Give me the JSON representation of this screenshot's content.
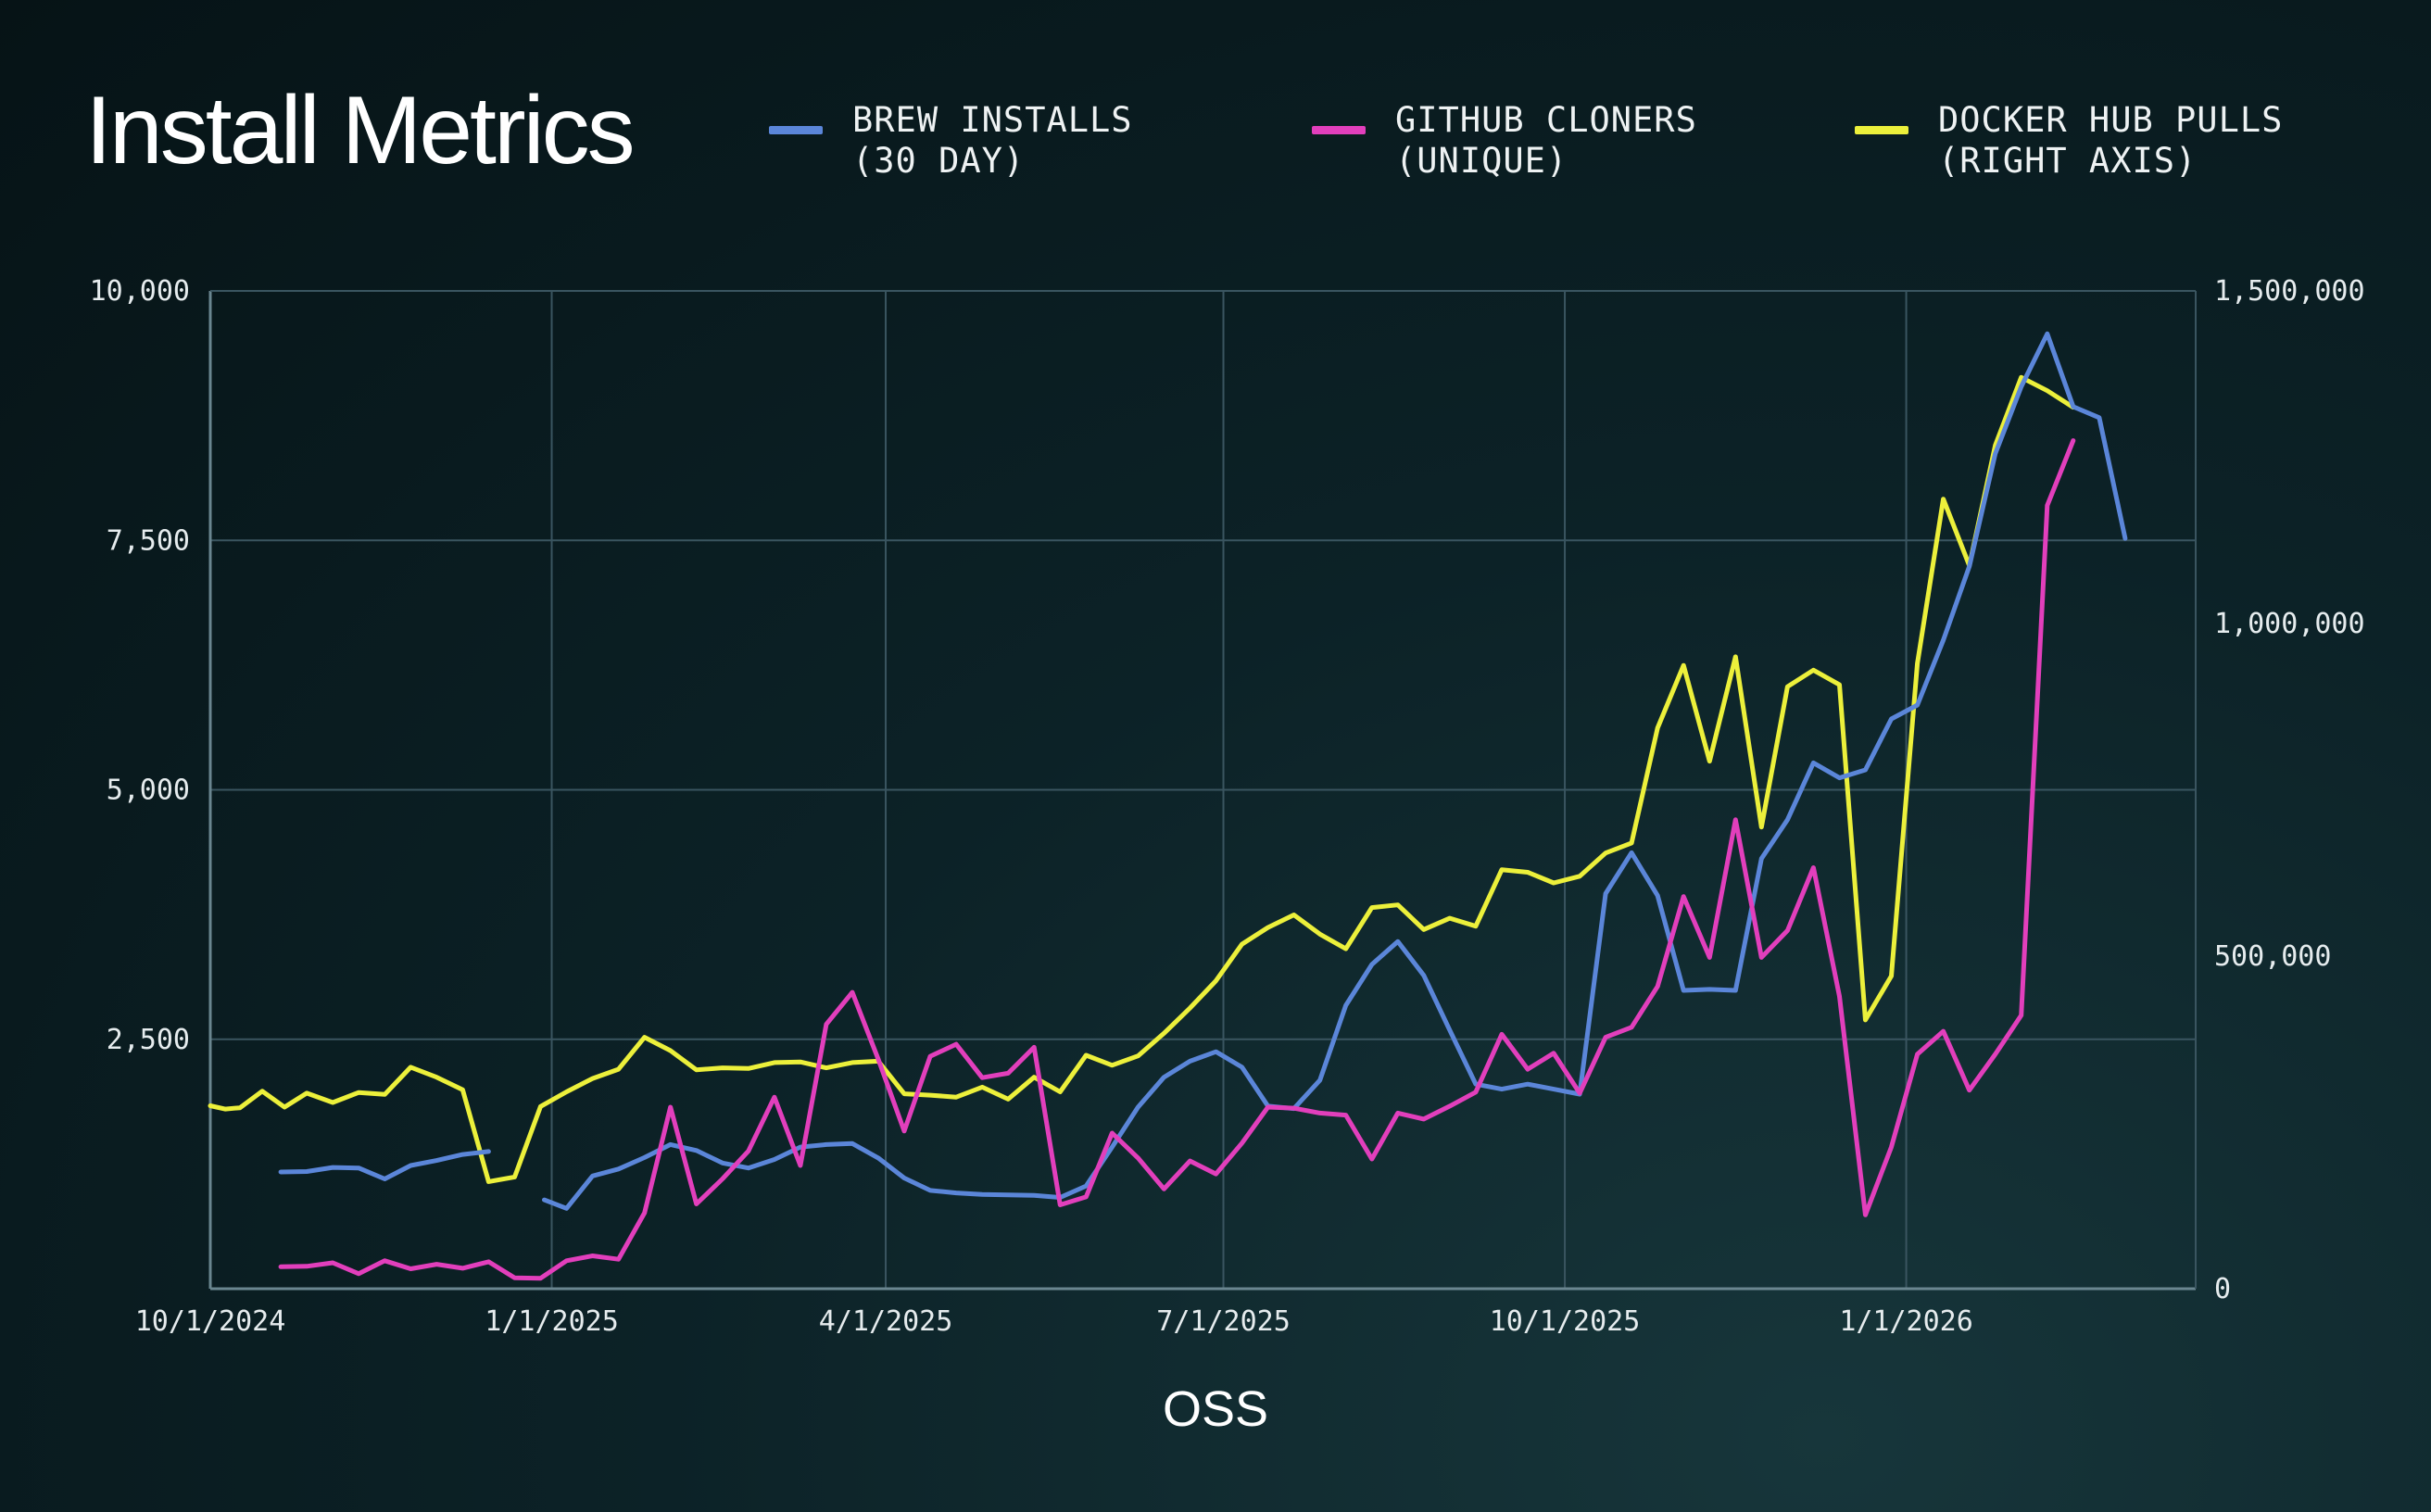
{
  "chart_data": {
    "type": "line",
    "title": "Install Metrics",
    "xlabel": "OSS",
    "x_range": [
      "2024-10-01",
      "2026-03-20"
    ],
    "x_ticks": [
      "10/1/2024",
      "1/1/2025",
      "4/1/2025",
      "7/1/2025",
      "10/1/2025",
      "1/1/2026"
    ],
    "y_left": {
      "ylim": [
        0,
        10000
      ],
      "ticks": [
        "2,500",
        "5,000",
        "7,500",
        "10,000"
      ]
    },
    "y_right": {
      "ylim": [
        0,
        1500000
      ],
      "ticks": [
        "0",
        "500,000",
        "1,000,000",
        "1,500,000"
      ]
    },
    "grid": true,
    "legend_position": "top",
    "series": [
      {
        "name_line1": "BREW INSTALLS",
        "name_line2": "(30 DAY)",
        "axis": "left",
        "color": "#5b86d9",
        "points": [
          [
            "2024-10-20",
            1170
          ],
          [
            "2024-10-27",
            1175
          ],
          [
            "2024-11-03",
            1215
          ],
          [
            "2024-11-10",
            1210
          ],
          [
            "2024-11-17",
            1100
          ],
          [
            "2024-11-24",
            1235
          ],
          [
            "2024-12-01",
            1285
          ],
          [
            "2024-12-08",
            1345
          ],
          [
            "2024-12-15",
            1375
          ],
          null,
          [
            "2024-12-30",
            890
          ],
          [
            "2025-01-05",
            805
          ],
          [
            "2025-01-12",
            1130
          ],
          [
            "2025-01-19",
            1200
          ],
          [
            "2025-01-26",
            1315
          ],
          [
            "2025-02-02",
            1445
          ],
          [
            "2025-02-09",
            1385
          ],
          [
            "2025-02-16",
            1260
          ],
          [
            "2025-02-23",
            1210
          ],
          [
            "2025-03-02",
            1295
          ],
          [
            "2025-03-09",
            1420
          ],
          [
            "2025-03-16",
            1445
          ],
          [
            "2025-03-23",
            1455
          ],
          [
            "2025-03-30",
            1310
          ],
          [
            "2025-04-06",
            1110
          ],
          [
            "2025-04-13",
            985
          ],
          [
            "2025-04-20",
            960
          ],
          [
            "2025-04-27",
            945
          ],
          [
            "2025-05-04",
            940
          ],
          [
            "2025-05-11",
            935
          ],
          [
            "2025-05-18",
            915
          ],
          [
            "2025-05-25",
            1030
          ],
          [
            "2025-06-01",
            1420
          ],
          [
            "2025-06-08",
            1820
          ],
          [
            "2025-06-15",
            2120
          ],
          [
            "2025-06-22",
            2280
          ],
          [
            "2025-06-29",
            2375
          ],
          [
            "2025-07-06",
            2220
          ],
          [
            "2025-07-13",
            1830
          ],
          [
            "2025-07-20",
            1805
          ],
          [
            "2025-07-27",
            2090
          ],
          [
            "2025-08-03",
            2840
          ],
          [
            "2025-08-10",
            3250
          ],
          [
            "2025-08-17",
            3480
          ],
          [
            "2025-08-24",
            3140
          ],
          [
            "2025-08-31",
            2590
          ],
          [
            "2025-09-07",
            2050
          ],
          [
            "2025-09-14",
            2000
          ],
          [
            "2025-09-21",
            2050
          ],
          [
            "2025-09-28",
            2000
          ],
          [
            "2025-10-05",
            1950
          ],
          [
            "2025-10-12",
            3960
          ],
          [
            "2025-10-19",
            4370
          ],
          [
            "2025-10-26",
            3940
          ],
          [
            "2025-11-02",
            2990
          ],
          [
            "2025-11-09",
            3000
          ],
          [
            "2025-11-16",
            2990
          ],
          [
            "2025-11-23",
            4310
          ],
          [
            "2025-11-30",
            4700
          ],
          [
            "2025-12-07",
            5270
          ],
          [
            "2025-12-14",
            5120
          ],
          [
            "2025-12-21",
            5200
          ],
          [
            "2025-12-28",
            5710
          ],
          [
            "2026-01-04",
            5850
          ],
          [
            "2026-01-11",
            6500
          ],
          [
            "2026-01-18",
            7240
          ],
          [
            "2026-01-25",
            8370
          ],
          [
            "2026-02-01",
            9040
          ],
          [
            "2026-02-08",
            9570
          ],
          [
            "2026-02-15",
            8840
          ],
          [
            "2026-02-22",
            8730
          ],
          [
            "2026-03-01",
            7520
          ]
        ]
      },
      {
        "name_line1": "GITHUB CLONERS",
        "name_line2": "(UNIQUE)",
        "axis": "left",
        "color": "#e23fbc",
        "points": [
          [
            "2024-10-20",
            220
          ],
          [
            "2024-10-27",
            225
          ],
          [
            "2024-11-03",
            260
          ],
          [
            "2024-11-10",
            150
          ],
          [
            "2024-11-17",
            280
          ],
          [
            "2024-11-24",
            200
          ],
          [
            "2024-12-01",
            245
          ],
          [
            "2024-12-08",
            205
          ],
          [
            "2024-12-15",
            270
          ],
          [
            "2024-12-22",
            110
          ],
          [
            "2024-12-29",
            105
          ],
          [
            "2025-01-05",
            280
          ],
          [
            "2025-01-12",
            330
          ],
          [
            "2025-01-19",
            295
          ],
          [
            "2025-01-26",
            760
          ],
          [
            "2025-02-02",
            1820
          ],
          [
            "2025-02-09",
            850
          ],
          [
            "2025-02-16",
            1100
          ],
          [
            "2025-02-23",
            1380
          ],
          [
            "2025-03-02",
            1920
          ],
          [
            "2025-03-09",
            1235
          ],
          [
            "2025-03-16",
            2650
          ],
          [
            "2025-03-23",
            2970
          ],
          [
            "2025-03-30",
            2300
          ],
          [
            "2025-04-06",
            1580
          ],
          [
            "2025-04-13",
            2330
          ],
          [
            "2025-04-20",
            2450
          ],
          [
            "2025-04-27",
            2115
          ],
          [
            "2025-05-04",
            2160
          ],
          [
            "2025-05-11",
            2420
          ],
          [
            "2025-05-18",
            840
          ],
          [
            "2025-05-25",
            920
          ],
          [
            "2025-06-01",
            1560
          ],
          [
            "2025-06-08",
            1310
          ],
          [
            "2025-06-15",
            1000
          ],
          [
            "2025-06-22",
            1280
          ],
          [
            "2025-06-29",
            1150
          ],
          [
            "2025-07-06",
            1460
          ],
          [
            "2025-07-13",
            1820
          ],
          [
            "2025-07-20",
            1810
          ],
          [
            "2025-07-27",
            1760
          ],
          [
            "2025-08-03",
            1740
          ],
          [
            "2025-08-10",
            1300
          ],
          [
            "2025-08-17",
            1760
          ],
          [
            "2025-08-24",
            1700
          ],
          [
            "2025-08-31",
            1830
          ],
          [
            "2025-09-07",
            1970
          ],
          [
            "2025-09-14",
            2550
          ],
          [
            "2025-09-21",
            2200
          ],
          [
            "2025-09-28",
            2360
          ],
          [
            "2025-10-05",
            1960
          ],
          [
            "2025-10-12",
            2520
          ],
          [
            "2025-10-19",
            2620
          ],
          [
            "2025-10-26",
            3030
          ],
          [
            "2025-11-02",
            3930
          ],
          [
            "2025-11-09",
            3320
          ],
          [
            "2025-11-16",
            4700
          ],
          [
            "2025-11-23",
            3320
          ],
          [
            "2025-11-30",
            3590
          ],
          [
            "2025-12-07",
            4220
          ],
          [
            "2025-12-14",
            2930
          ],
          [
            "2025-12-21",
            740
          ],
          [
            "2025-12-28",
            1420
          ],
          [
            "2026-01-04",
            2350
          ],
          [
            "2026-01-11",
            2580
          ],
          [
            "2026-01-18",
            1990
          ],
          [
            "2026-01-25",
            2350
          ],
          [
            "2026-02-01",
            2740
          ],
          [
            "2026-02-08",
            7850
          ],
          [
            "2026-02-15",
            8500
          ]
        ]
      },
      {
        "name_line1": "DOCKER HUB PULLS",
        "name_line2": "(RIGHT AXIS)",
        "axis": "right",
        "color": "#ecf03b",
        "points": [
          [
            "2024-10-01",
            275000
          ],
          [
            "2024-10-05",
            270000
          ],
          [
            "2024-10-09",
            272000
          ],
          [
            "2024-10-15",
            297000
          ],
          [
            "2024-10-21",
            273000
          ],
          [
            "2024-10-27",
            294000
          ],
          [
            "2024-11-03",
            280000
          ],
          [
            "2024-11-10",
            295000
          ],
          [
            "2024-11-17",
            292000
          ],
          [
            "2024-11-24",
            333000
          ],
          [
            "2024-12-01",
            318000
          ],
          [
            "2024-12-08",
            299000
          ],
          [
            "2024-12-15",
            161000
          ],
          [
            "2024-12-22",
            168000
          ],
          [
            "2024-12-29",
            274000
          ],
          [
            "2025-01-05",
            296000
          ],
          [
            "2025-01-12",
            316000
          ],
          [
            "2025-01-19",
            330000
          ],
          [
            "2025-01-26",
            378000
          ],
          [
            "2025-02-02",
            358000
          ],
          [
            "2025-02-09",
            329000
          ],
          [
            "2025-02-16",
            332000
          ],
          [
            "2025-02-23",
            331000
          ],
          [
            "2025-03-02",
            340000
          ],
          [
            "2025-03-09",
            341000
          ],
          [
            "2025-03-16",
            332000
          ],
          [
            "2025-03-23",
            340000
          ],
          [
            "2025-03-30",
            342000
          ],
          [
            "2025-04-06",
            293000
          ],
          [
            "2025-04-13",
            291000
          ],
          [
            "2025-04-20",
            288000
          ],
          [
            "2025-04-27",
            303000
          ],
          [
            "2025-05-04",
            285000
          ],
          [
            "2025-05-11",
            318000
          ],
          [
            "2025-05-18",
            296000
          ],
          [
            "2025-05-25",
            351000
          ],
          [
            "2025-06-01",
            336000
          ],
          [
            "2025-06-08",
            350000
          ],
          [
            "2025-06-15",
            384000
          ],
          [
            "2025-06-22",
            422000
          ],
          [
            "2025-06-29",
            463000
          ],
          [
            "2025-07-06",
            518000
          ],
          [
            "2025-07-13",
            543000
          ],
          [
            "2025-07-20",
            562000
          ],
          [
            "2025-07-27",
            533000
          ],
          [
            "2025-08-03",
            511000
          ],
          [
            "2025-08-10",
            573000
          ],
          [
            "2025-08-17",
            577000
          ],
          [
            "2025-08-24",
            540000
          ],
          [
            "2025-08-31",
            557000
          ],
          [
            "2025-09-07",
            545000
          ],
          [
            "2025-09-14",
            630000
          ],
          [
            "2025-09-21",
            626000
          ],
          [
            "2025-09-28",
            610000
          ],
          [
            "2025-10-05",
            620000
          ],
          [
            "2025-10-12",
            655000
          ],
          [
            "2025-10-19",
            670000
          ],
          [
            "2025-10-26",
            843000
          ],
          [
            "2025-11-02",
            937000
          ],
          [
            "2025-11-09",
            793000
          ],
          [
            "2025-11-16",
            950000
          ],
          [
            "2025-11-23",
            694000
          ],
          [
            "2025-11-30",
            905000
          ],
          [
            "2025-12-07",
            930000
          ],
          [
            "2025-12-14",
            908000
          ],
          [
            "2025-12-21",
            404000
          ],
          [
            "2025-12-28",
            470000
          ],
          [
            "2026-01-04",
            940000
          ],
          [
            "2026-01-11",
            1187000
          ],
          [
            "2026-01-18",
            1087000
          ],
          [
            "2026-01-25",
            1268000
          ],
          [
            "2026-02-01",
            1370000
          ],
          [
            "2026-02-08",
            1350000
          ],
          [
            "2026-02-15",
            1325000
          ]
        ]
      }
    ]
  }
}
